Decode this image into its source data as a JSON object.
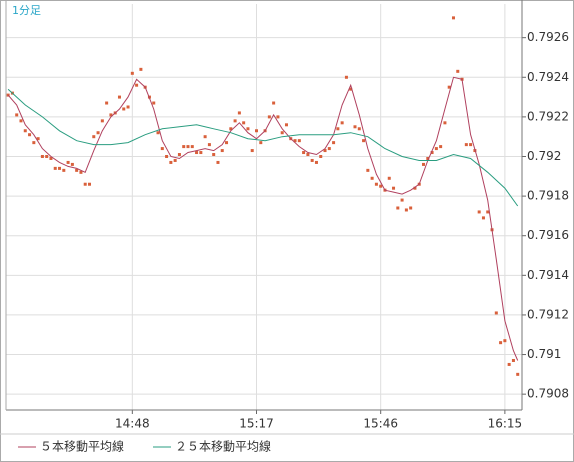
{
  "chart_data": {
    "type": "line",
    "title": "1分足",
    "xlim": [
      858.5,
      979
    ],
    "ylim": [
      0.79072,
      0.79277
    ],
    "xticks": [
      {
        "value": 888,
        "label": "14:48"
      },
      {
        "value": 917,
        "label": "15:17"
      },
      {
        "value": 946,
        "label": "15:46"
      },
      {
        "value": 975,
        "label": "16:15"
      }
    ],
    "yticks": [
      0.7908,
      0.791,
      0.7912,
      0.7914,
      0.7916,
      0.7918,
      0.792,
      0.7922,
      0.7924,
      0.7926
    ],
    "grid": true,
    "legend": "bottom-left",
    "series": [
      {
        "mode": "markers",
        "color": "#d9603b",
        "x": [
          859,
          860,
          861,
          862,
          863,
          864,
          865,
          866,
          867,
          868,
          869,
          870,
          871,
          872,
          873,
          874,
          875,
          876,
          877,
          878,
          879,
          880,
          881,
          882,
          883,
          884,
          885,
          886,
          887,
          888,
          889,
          890,
          891,
          892,
          893,
          894,
          895,
          896,
          897,
          898,
          899,
          900,
          901,
          902,
          903,
          904,
          905,
          906,
          907,
          908,
          909,
          910,
          911,
          912,
          913,
          914,
          915,
          916,
          917,
          918,
          919,
          920,
          921,
          922,
          923,
          924,
          925,
          926,
          927,
          928,
          929,
          930,
          931,
          932,
          933,
          934,
          935,
          936,
          937,
          938,
          939,
          940,
          941,
          942,
          943,
          944,
          945,
          946,
          947,
          948,
          949,
          950,
          951,
          952,
          953,
          954,
          955,
          956,
          957,
          958,
          959,
          960,
          961,
          962,
          963,
          964,
          965,
          966,
          967,
          968,
          969,
          970,
          971,
          972,
          973,
          974,
          975,
          976,
          977,
          978
        ],
        "values": [
          0.79231,
          0.79232,
          0.79221,
          0.79218,
          0.79213,
          0.79211,
          0.79207,
          0.79209,
          0.792,
          0.792,
          0.79199,
          0.79194,
          0.79194,
          0.79193,
          0.79197,
          0.79196,
          0.79193,
          0.79192,
          0.79186,
          0.79186,
          0.7921,
          0.79212,
          0.79218,
          0.79227,
          0.79221,
          0.79222,
          0.7923,
          0.79224,
          0.79225,
          0.79242,
          0.79236,
          0.79244,
          0.79235,
          0.7923,
          0.79227,
          0.79212,
          0.79204,
          0.792,
          0.79197,
          0.79198,
          0.79201,
          0.79205,
          0.79205,
          0.79205,
          0.79202,
          0.79202,
          0.7921,
          0.79206,
          0.79201,
          0.79197,
          0.79203,
          0.79207,
          0.79214,
          0.79218,
          0.79222,
          0.79217,
          0.79214,
          0.79203,
          0.79213,
          0.79207,
          0.79213,
          0.7922,
          0.79227,
          0.7922,
          0.79212,
          0.79216,
          0.79209,
          0.79208,
          0.79208,
          0.79202,
          0.79201,
          0.79198,
          0.79197,
          0.792,
          0.79203,
          0.79204,
          0.79207,
          0.79214,
          0.79217,
          0.7924,
          0.79234,
          0.79215,
          0.79214,
          0.79208,
          0.79193,
          0.79189,
          0.79186,
          0.79185,
          0.79183,
          0.79189,
          0.79184,
          0.79174,
          0.79178,
          0.79173,
          0.79174,
          0.79184,
          0.79186,
          0.79196,
          0.79199,
          0.79202,
          0.79204,
          0.79205,
          0.79217,
          0.79235,
          0.7927,
          0.79243,
          0.79239,
          0.79206,
          0.79206,
          0.79203,
          0.79172,
          0.79169,
          0.79172,
          0.79163,
          0.79121,
          0.79106,
          0.79107,
          0.79095,
          0.79097,
          0.7909
        ]
      },
      {
        "mode": "line",
        "name": "５本移動平均線",
        "color": "#b0405e",
        "x": [
          859,
          861,
          863,
          865,
          867,
          869,
          871,
          873,
          875,
          877,
          879,
          881,
          883,
          885,
          887,
          889,
          891,
          893,
          895,
          897,
          899,
          901,
          903,
          905,
          907,
          909,
          911,
          913,
          915,
          917,
          919,
          921,
          923,
          925,
          927,
          929,
          931,
          933,
          935,
          937,
          939,
          941,
          943,
          945,
          947,
          949,
          951,
          953,
          955,
          957,
          959,
          961,
          963,
          965,
          967,
          969,
          971,
          973,
          975,
          977,
          978
        ],
        "values": [
          0.79231,
          0.79226,
          0.79216,
          0.79211,
          0.79204,
          0.792,
          0.79197,
          0.79195,
          0.79194,
          0.79192,
          0.79203,
          0.79213,
          0.7922,
          0.79224,
          0.7923,
          0.79239,
          0.79235,
          0.79224,
          0.79208,
          0.792,
          0.79199,
          0.79202,
          0.79203,
          0.79204,
          0.79203,
          0.79206,
          0.79213,
          0.79217,
          0.79212,
          0.79209,
          0.79213,
          0.79221,
          0.79214,
          0.79209,
          0.79205,
          0.79202,
          0.79201,
          0.79204,
          0.79211,
          0.79226,
          0.79236,
          0.79221,
          0.79204,
          0.79191,
          0.79183,
          0.79182,
          0.79181,
          0.79183,
          0.79186,
          0.79198,
          0.79208,
          0.79224,
          0.7924,
          0.79239,
          0.79211,
          0.79196,
          0.79178,
          0.79148,
          0.79117,
          0.79102,
          0.79097
        ]
      },
      {
        "mode": "line",
        "name": "２５本移動平均線",
        "color": "#2a9d80",
        "x": [
          859,
          863,
          867,
          871,
          875,
          879,
          883,
          887,
          891,
          895,
          899,
          903,
          907,
          911,
          915,
          919,
          923,
          927,
          931,
          935,
          939,
          943,
          947,
          951,
          955,
          959,
          963,
          967,
          971,
          975,
          978
        ],
        "values": [
          0.79234,
          0.79226,
          0.7922,
          0.79213,
          0.79208,
          0.79206,
          0.79206,
          0.79207,
          0.79211,
          0.79214,
          0.79215,
          0.79216,
          0.79214,
          0.79212,
          0.79209,
          0.79208,
          0.7921,
          0.79211,
          0.79211,
          0.79211,
          0.79212,
          0.7921,
          0.79204,
          0.792,
          0.79198,
          0.79198,
          0.79201,
          0.79199,
          0.79192,
          0.79184,
          0.79175
        ]
      }
    ]
  }
}
